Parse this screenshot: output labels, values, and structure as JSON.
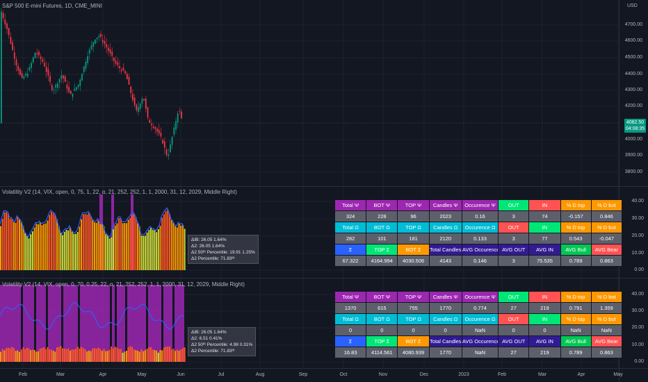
{
  "symbol_title": "S&P 500 E-mini Futures, 1D, CME_MINI",
  "currency": "USD",
  "price_axis": [
    "4700.00",
    "4600.00",
    "4500.00",
    "4400.00",
    "4300.00",
    "4200.00",
    "4000.00",
    "3900.00",
    "3800.00"
  ],
  "last_price": "4082.50",
  "countdown": "04:08:35",
  "indicator1_title": "Volatility V2 (14, VIX, open, 0, 75, 1, 22, α, 21, 252, 252, 1, 1, 2000, 31, 12, 2029, Middle Right)",
  "indicator2_title": "Volatility V2 (14, VIX, open, 0, 70, 0.25, 22, α, 21, 252, 252, 1, 1, 2000, 31, 12, 2029, Middle Right)",
  "indicator_axis": [
    "40.00",
    "30.00",
    "20.00",
    "10.00",
    "0.00"
  ],
  "tooltip1": [
    "ΔIB: 26.05  1.64%",
    "Δ2: 26.05  1.64%",
    "Δ2 50ᵗʰ Percentile: 19.91  1.25%",
    "Δ2 Percentile: 71.83ᵗʰ"
  ],
  "tooltip2": [
    "ΔIB: 26.05  1.64%",
    "Δ2: 6.51  0.41%",
    "Δ2 50ᵗʰ Percentile: 4.98  0.31%",
    "Δ2 Percentile: 71.83ᵗʰ"
  ],
  "time_axis": [
    "Feb",
    "Mar",
    "Apr",
    "May",
    "Jun",
    "Jul",
    "Aug",
    "Sep",
    "Oct",
    "Nov",
    "Dec",
    "2023",
    "Feb",
    "Mar",
    "Apr",
    "May"
  ],
  "table1": [
    [
      [
        "Total Ψ",
        "purple"
      ],
      [
        "BOT Ψ",
        "purple"
      ],
      [
        "TOP Ψ",
        "purple"
      ],
      [
        "Candles Ψ",
        "purple"
      ],
      [
        "Occurence Ψ",
        "purple"
      ],
      [
        "OUT",
        "green"
      ],
      [
        "IN",
        "red"
      ],
      [
        "% D top",
        "orange"
      ],
      [
        "% D bot",
        "orange"
      ]
    ],
    [
      [
        "324",
        "grey"
      ],
      [
        "228",
        "grey"
      ],
      [
        "96",
        "grey"
      ],
      [
        "2023",
        "grey"
      ],
      [
        "0.16",
        "grey"
      ],
      [
        "3",
        "grey"
      ],
      [
        "74",
        "grey"
      ],
      [
        "-0.157",
        "grey"
      ],
      [
        "0.846",
        "grey"
      ]
    ],
    [
      [
        "Total Ω",
        "teal"
      ],
      [
        "BOT Ω",
        "teal"
      ],
      [
        "TOP Ω",
        "teal"
      ],
      [
        "Candles Ω",
        "teal"
      ],
      [
        "Occurence Ω",
        "teal"
      ],
      [
        "OUT",
        "red"
      ],
      [
        "IN",
        "green"
      ],
      [
        "% D top",
        "orange"
      ],
      [
        "% D bot",
        "orange"
      ]
    ],
    [
      [
        "282",
        "grey"
      ],
      [
        "101",
        "grey"
      ],
      [
        "181",
        "grey"
      ],
      [
        "2120",
        "grey"
      ],
      [
        "0.133",
        "grey"
      ],
      [
        "3",
        "grey"
      ],
      [
        "77",
        "grey"
      ],
      [
        "0.543",
        "grey"
      ],
      [
        "-0.047",
        "grey"
      ]
    ],
    [
      [
        "Σ",
        "blue"
      ],
      [
        "TOP Σ",
        "green"
      ],
      [
        "BOT Σ",
        "orange"
      ],
      [
        "Total Candles",
        "navy"
      ],
      [
        "AVG Occurence",
        "navy"
      ],
      [
        "AVG OUT",
        "navy"
      ],
      [
        "AVG IN",
        "navy"
      ],
      [
        "AVG Bull",
        "green2"
      ],
      [
        "AVG Bear",
        "red"
      ]
    ],
    [
      [
        "67.322",
        "grey"
      ],
      [
        "4164.994",
        "grey"
      ],
      [
        "4030.506",
        "grey"
      ],
      [
        "4143",
        "grey"
      ],
      [
        "0.146",
        "grey"
      ],
      [
        "3",
        "grey"
      ],
      [
        "75.535",
        "grey"
      ],
      [
        "0.789",
        "grey"
      ],
      [
        "0.863",
        "grey"
      ]
    ]
  ],
  "table2": [
    [
      [
        "Total Ψ",
        "purple"
      ],
      [
        "BOT Ψ",
        "purple"
      ],
      [
        "TOP Ψ",
        "purple"
      ],
      [
        "Candles Ψ",
        "purple"
      ],
      [
        "Occurence Ψ",
        "purple"
      ],
      [
        "OUT",
        "green"
      ],
      [
        "IN",
        "red"
      ],
      [
        "% D top",
        "orange"
      ],
      [
        "% D bot",
        "orange"
      ]
    ],
    [
      [
        "1370",
        "grey"
      ],
      [
        "615",
        "grey"
      ],
      [
        "755",
        "grey"
      ],
      [
        "1770",
        "grey"
      ],
      [
        "0.774",
        "grey"
      ],
      [
        "27",
        "grey"
      ],
      [
        "219",
        "grey"
      ],
      [
        "0.791",
        "grey"
      ],
      [
        "1.359",
        "grey"
      ]
    ],
    [
      [
        "Total Ω",
        "teal"
      ],
      [
        "BOT Ω",
        "teal"
      ],
      [
        "TOP Ω",
        "teal"
      ],
      [
        "Candles Ω",
        "teal"
      ],
      [
        "Occurence Ω",
        "teal"
      ],
      [
        "OUT",
        "red"
      ],
      [
        "IN",
        "green"
      ],
      [
        "% D top",
        "orange"
      ],
      [
        "% D bot",
        "orange"
      ]
    ],
    [
      [
        "0",
        "grey"
      ],
      [
        "0",
        "grey"
      ],
      [
        "0",
        "grey"
      ],
      [
        "0",
        "grey"
      ],
      [
        "NaN",
        "grey"
      ],
      [
        "0",
        "grey"
      ],
      [
        "0",
        "grey"
      ],
      [
        "NaN",
        "grey"
      ],
      [
        "NaN",
        "grey"
      ]
    ],
    [
      [
        "Σ",
        "blue"
      ],
      [
        "TOP Σ",
        "green"
      ],
      [
        "BOT Σ",
        "orange"
      ],
      [
        "Total Candles",
        "navy"
      ],
      [
        "AVG Occurence",
        "navy"
      ],
      [
        "AVG OUT",
        "navy"
      ],
      [
        "AVG IN",
        "navy"
      ],
      [
        "AVG Bull",
        "green2"
      ],
      [
        "AVG Bear",
        "red"
      ]
    ],
    [
      [
        "16.83",
        "grey"
      ],
      [
        "4114.561",
        "grey"
      ],
      [
        "4080.939",
        "grey"
      ],
      [
        "1770",
        "grey"
      ],
      [
        "NaN",
        "grey"
      ],
      [
        "27",
        "grey"
      ],
      [
        "219",
        "grey"
      ],
      [
        "0.789",
        "grey"
      ],
      [
        "0.863",
        "grey"
      ]
    ]
  ],
  "colors": {
    "background": "#131722",
    "bull": "#089981",
    "bear": "#f23645",
    "vol_line": "#2962ff",
    "bar_hot": "#ff5722",
    "bar_warm": "#ff9800",
    "bar_cool": "#cddc39",
    "highlight": "#9c27b0"
  }
}
